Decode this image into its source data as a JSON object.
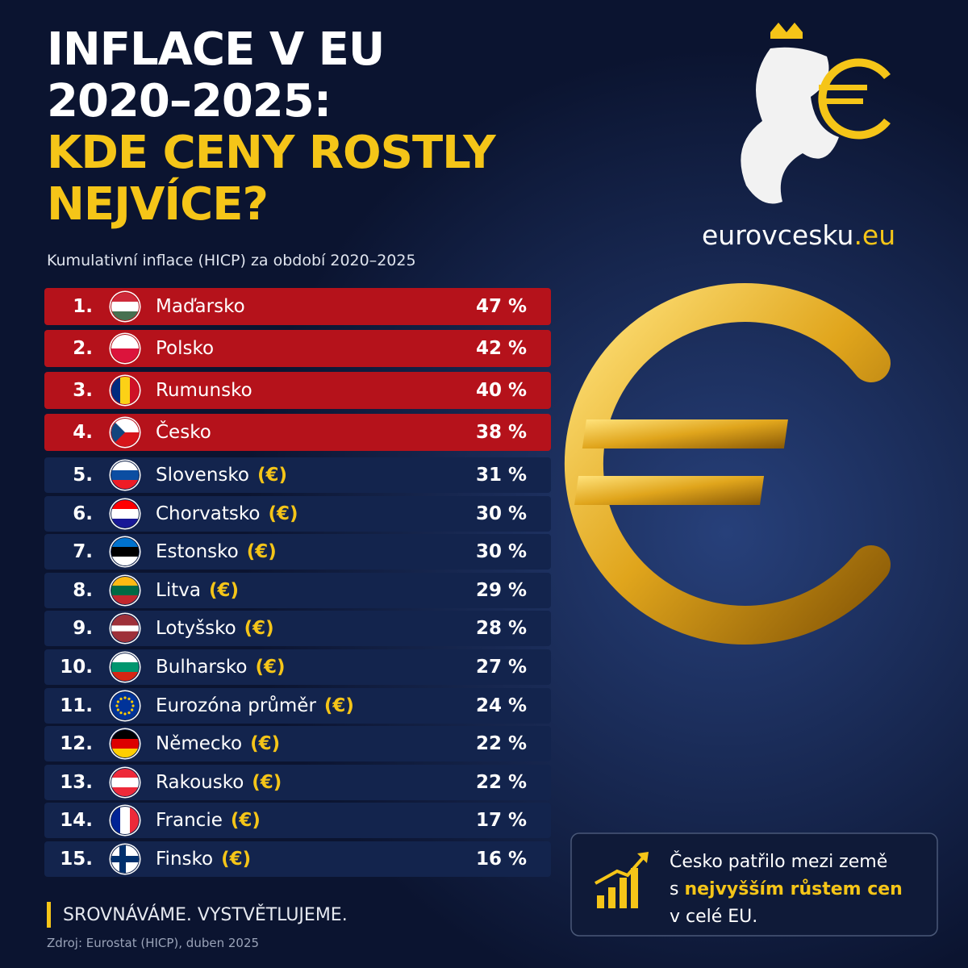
{
  "header": {
    "title_lines": [
      "INFLACE V EU",
      "2020–2025:"
    ],
    "highlight_lines": [
      "KDE CENY ROSTLY",
      "NEJVÍCE?"
    ],
    "subtitle": "Kumulativní inflace (HICP) za období 2020–2025"
  },
  "logo": {
    "name": "eurovcesku",
    "domain": ".eu"
  },
  "table": {
    "rows": [
      {
        "rank": "1.",
        "country": "Maďarsko",
        "value": "47 %"
      },
      {
        "rank": "2.",
        "country": "Polsko",
        "value": "42 %"
      },
      {
        "rank": "3.",
        "country": "Rumunsko",
        "value": "40 %"
      },
      {
        "rank": "4.",
        "country": "Česko",
        "value": "38 %"
      },
      {
        "rank": "5.",
        "country": "Slovensko",
        "euro": "(€)",
        "value": "31 %"
      },
      {
        "rank": "6.",
        "country": "Chorvatsko",
        "euro": "(€)",
        "value": "30 %"
      },
      {
        "rank": "7.",
        "country": "Estonsko",
        "euro": "(€)",
        "value": "30 %"
      },
      {
        "rank": "8.",
        "country": "Litva",
        "euro": "(€)",
        "value": "29 %"
      },
      {
        "rank": "9.",
        "country": "Lotyšsko",
        "euro": "(€)",
        "value": "28 %"
      },
      {
        "rank": "10.",
        "country": "Bulharsko",
        "euro": "(€)",
        "value": "27 %"
      },
      {
        "rank": "11.",
        "country": "Eurozóna průměr",
        "euro": "(€)",
        "value": "24 %"
      },
      {
        "rank": "12.",
        "country": "Německo",
        "euro": "(€)",
        "value": "22 %"
      },
      {
        "rank": "13.",
        "country": "Rakousko",
        "euro": "(€)",
        "value": "22 %"
      },
      {
        "rank": "14.",
        "country": "Francie",
        "euro": "(€)",
        "value": "17 %"
      },
      {
        "rank": "15.",
        "country": "Finsko",
        "euro": "(€)",
        "value": "16 %"
      }
    ]
  },
  "callout": {
    "line1": "Česko patřilo mezi země",
    "line2_prefix": "s",
    "line2_highlight": "nejvyšším růstem cen",
    "line3": "v celé EU."
  },
  "footer": {
    "tagline": "SROVNÁVÁME. VYSTVĚTLUJEME.",
    "source": "Zdroj: Eurostat (HICP), duben 2025"
  }
}
